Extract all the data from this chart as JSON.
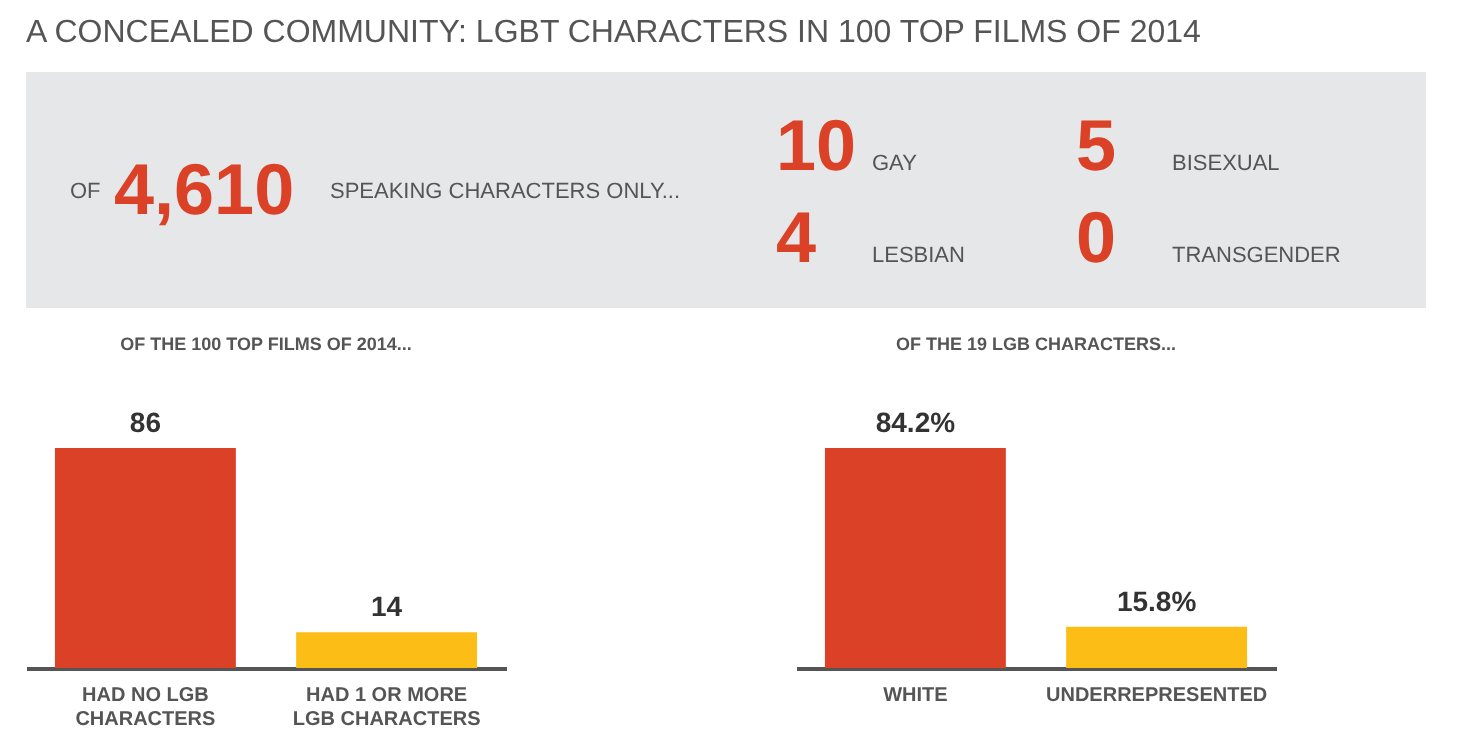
{
  "chart_data": [
    {
      "type": "other",
      "title": "A CONCEALED COMMUNITY: LGBT CHARACTERS IN 100 TOP FILMS OF 2014",
      "annotations": [
        "OF",
        "4,610",
        "SPEAKING CHARACTERS ONLY..."
      ],
      "categories": [
        "GAY",
        "BISEXUAL",
        "LESBIAN",
        "TRANSGENDER"
      ],
      "values": [
        10,
        5,
        4,
        0
      ],
      "data_labels": true
    },
    {
      "type": "bar",
      "title": "OF THE 100 TOP FILMS OF 2014...",
      "categories": [
        "HAD NO LGB CHARACTERS",
        "HAD 1 OR MORE LGB CHARACTERS"
      ],
      "values": [
        86,
        14
      ],
      "colors": [
        "#db4127",
        "#fbbd16"
      ],
      "data_labels": true
    },
    {
      "type": "bar",
      "title": "OF THE 19 LGB CHARACTERS...",
      "categories": [
        "WHITE",
        "UNDERREPRESENTED"
      ],
      "values": [
        84.2,
        15.8
      ],
      "value_labels": [
        "84.2%",
        "15.8%"
      ],
      "colors": [
        "#db4127",
        "#fbbd16"
      ]
    }
  ]
}
